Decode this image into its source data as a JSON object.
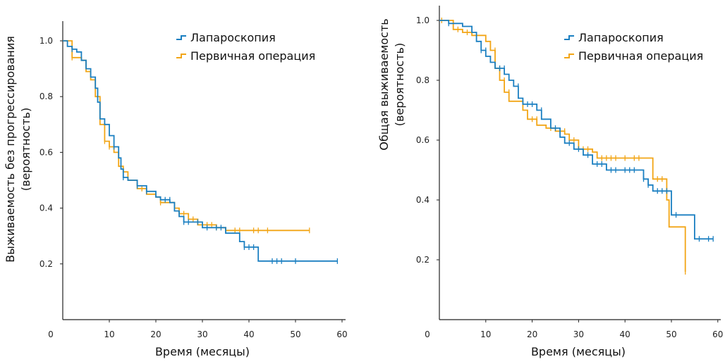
{
  "colors": {
    "laparoscopy": "#1a7fc1",
    "primary": "#f2a516"
  },
  "chart_data": [
    {
      "type": "line",
      "subtype": "kaplan-meier",
      "title": "",
      "xlabel": "Время (месяцы)",
      "ylabel_line1": "Выживаемость без прогрессирования",
      "ylabel_line2": "(вероятность)",
      "xlim": [
        0,
        60
      ],
      "ylim": [
        0,
        1.05
      ],
      "xticks": [
        0,
        10,
        20,
        30,
        40,
        50,
        60
      ],
      "xtick_labels": [
        "0",
        "10",
        "20",
        "30",
        "40",
        "50",
        "60"
      ],
      "yticks": [
        0.2,
        0.4,
        0.6,
        0.8,
        1.0
      ],
      "ytick_labels": [
        "0.2",
        "0.4",
        "0.6",
        "0.8",
        "1.0"
      ],
      "grid": false,
      "legend_position": "top-right",
      "series": [
        {
          "name": "Лапароскопия",
          "color_key": "laparoscopy",
          "steps": [
            [
              0,
              1.0
            ],
            [
              1,
              0.98
            ],
            [
              2,
              0.97
            ],
            [
              3,
              0.96
            ],
            [
              4,
              0.93
            ],
            [
              5,
              0.9
            ],
            [
              6,
              0.87
            ],
            [
              7,
              0.83
            ],
            [
              7.5,
              0.78
            ],
            [
              8,
              0.72
            ],
            [
              9,
              0.7
            ],
            [
              10,
              0.66
            ],
            [
              11,
              0.62
            ],
            [
              12,
              0.58
            ],
            [
              12.5,
              0.54
            ],
            [
              13,
              0.51
            ],
            [
              14,
              0.5
            ],
            [
              16,
              0.48
            ],
            [
              18,
              0.46
            ],
            [
              20,
              0.44
            ],
            [
              21,
              0.43
            ],
            [
              23,
              0.42
            ],
            [
              24,
              0.39
            ],
            [
              25,
              0.37
            ],
            [
              26,
              0.35
            ],
            [
              30,
              0.33
            ],
            [
              35,
              0.31
            ],
            [
              38,
              0.28
            ],
            [
              39,
              0.26
            ],
            [
              42,
              0.21
            ]
          ],
          "end": 59,
          "censored": [
            [
              2,
              0.97
            ],
            [
              11,
              0.62
            ],
            [
              13,
              0.51
            ],
            [
              16,
              0.48
            ],
            [
              18,
              0.46
            ],
            [
              22,
              0.43
            ],
            [
              23,
              0.43
            ],
            [
              26,
              0.35
            ],
            [
              27,
              0.35
            ],
            [
              29,
              0.35
            ],
            [
              31,
              0.33
            ],
            [
              33,
              0.33
            ],
            [
              34,
              0.33
            ],
            [
              39,
              0.26
            ],
            [
              40,
              0.26
            ],
            [
              41,
              0.26
            ],
            [
              45,
              0.21
            ],
            [
              46,
              0.21
            ],
            [
              47,
              0.21
            ],
            [
              50,
              0.21
            ],
            [
              59,
              0.21
            ]
          ]
        },
        {
          "name": "Первичная операция",
          "color_key": "primary",
          "steps": [
            [
              0,
              1.0
            ],
            [
              2,
              0.94
            ],
            [
              4,
              0.93
            ],
            [
              5,
              0.89
            ],
            [
              6,
              0.86
            ],
            [
              7,
              0.8
            ],
            [
              8,
              0.7
            ],
            [
              9,
              0.64
            ],
            [
              10,
              0.62
            ],
            [
              11,
              0.6
            ],
            [
              12,
              0.55
            ],
            [
              13,
              0.53
            ],
            [
              14,
              0.5
            ],
            [
              16,
              0.47
            ],
            [
              18,
              0.45
            ],
            [
              20,
              0.44
            ],
            [
              21,
              0.42
            ],
            [
              24,
              0.4
            ],
            [
              25,
              0.38
            ],
            [
              27,
              0.36
            ],
            [
              29,
              0.34
            ],
            [
              33,
              0.33
            ],
            [
              35,
              0.32
            ]
          ],
          "end": 53,
          "censored": [
            [
              2,
              0.94
            ],
            [
              9,
              0.64
            ],
            [
              10,
              0.62
            ],
            [
              13,
              0.53
            ],
            [
              17,
              0.47
            ],
            [
              21,
              0.42
            ],
            [
              26,
              0.38
            ],
            [
              28,
              0.36
            ],
            [
              31,
              0.34
            ],
            [
              32,
              0.34
            ],
            [
              33,
              0.33
            ],
            [
              35,
              0.32
            ],
            [
              37,
              0.32
            ],
            [
              38,
              0.32
            ],
            [
              41,
              0.32
            ],
            [
              42,
              0.32
            ],
            [
              44,
              0.32
            ],
            [
              53,
              0.32
            ]
          ]
        }
      ]
    },
    {
      "type": "line",
      "subtype": "kaplan-meier",
      "title": "",
      "xlabel": "Время (месяцы)",
      "ylabel_line1": "Общая выживаемость",
      "ylabel_line2": "(вероятность)",
      "xlim": [
        0,
        60
      ],
      "ylim": [
        0,
        1.05
      ],
      "xticks": [
        0,
        10,
        20,
        30,
        40,
        50,
        60
      ],
      "xtick_labels": [
        "0",
        "10",
        "20",
        "30",
        "40",
        "50",
        "60"
      ],
      "yticks": [
        0.2,
        0.4,
        0.6,
        0.8,
        1.0
      ],
      "ytick_labels": [
        "0.2",
        "0.4",
        "0.6",
        "0.8",
        "1.0"
      ],
      "grid": false,
      "legend_position": "top-right",
      "series": [
        {
          "name": "Лапароскопия",
          "color_key": "laparoscopy",
          "steps": [
            [
              0,
              1.0
            ],
            [
              2,
              0.99
            ],
            [
              5,
              0.98
            ],
            [
              7,
              0.96
            ],
            [
              8,
              0.93
            ],
            [
              9,
              0.9
            ],
            [
              10,
              0.88
            ],
            [
              11,
              0.86
            ],
            [
              12,
              0.84
            ],
            [
              14,
              0.82
            ],
            [
              15,
              0.8
            ],
            [
              16,
              0.78
            ],
            [
              17,
              0.74
            ],
            [
              18,
              0.72
            ],
            [
              21,
              0.7
            ],
            [
              22,
              0.67
            ],
            [
              24,
              0.64
            ],
            [
              26,
              0.61
            ],
            [
              27,
              0.59
            ],
            [
              29,
              0.57
            ],
            [
              31,
              0.55
            ],
            [
              33,
              0.52
            ],
            [
              36,
              0.5
            ],
            [
              44,
              0.47
            ],
            [
              45,
              0.45
            ],
            [
              46,
              0.43
            ],
            [
              50,
              0.35
            ],
            [
              55,
              0.27
            ]
          ],
          "end": 59,
          "censored": [
            [
              2,
              0.99
            ],
            [
              9,
              0.9
            ],
            [
              10,
              0.9
            ],
            [
              13,
              0.84
            ],
            [
              14,
              0.84
            ],
            [
              17,
              0.78
            ],
            [
              19,
              0.72
            ],
            [
              20,
              0.72
            ],
            [
              22,
              0.7
            ],
            [
              25,
              0.64
            ],
            [
              28,
              0.59
            ],
            [
              30,
              0.57
            ],
            [
              32,
              0.55
            ],
            [
              34,
              0.52
            ],
            [
              35,
              0.52
            ],
            [
              37,
              0.5
            ],
            [
              38,
              0.5
            ],
            [
              40,
              0.5
            ],
            [
              41,
              0.5
            ],
            [
              42,
              0.5
            ],
            [
              44,
              0.47
            ],
            [
              45,
              0.45
            ],
            [
              47,
              0.43
            ],
            [
              48,
              0.43
            ],
            [
              49,
              0.43
            ],
            [
              51,
              0.35
            ],
            [
              56,
              0.27
            ],
            [
              58,
              0.27
            ],
            [
              59,
              0.27
            ]
          ]
        },
        {
          "name": "Первичная операция",
          "color_key": "primary",
          "steps": [
            [
              0,
              1.0
            ],
            [
              3,
              0.97
            ],
            [
              5,
              0.96
            ],
            [
              7,
              0.95
            ],
            [
              10,
              0.93
            ],
            [
              11,
              0.9
            ],
            [
              12,
              0.84
            ],
            [
              13,
              0.8
            ],
            [
              14,
              0.76
            ],
            [
              15,
              0.73
            ],
            [
              18,
              0.7
            ],
            [
              19,
              0.67
            ],
            [
              21,
              0.65
            ],
            [
              23,
              0.64
            ],
            [
              25,
              0.63
            ],
            [
              27,
              0.62
            ],
            [
              28,
              0.6
            ],
            [
              30,
              0.57
            ],
            [
              33,
              0.56
            ],
            [
              34,
              0.54
            ],
            [
              46,
              0.47
            ],
            [
              49,
              0.4
            ],
            [
              49.5,
              0.31
            ],
            [
              53,
              0.16
            ]
          ],
          "end": 53,
          "censored": [
            [
              0.5,
              1.0
            ],
            [
              4,
              0.97
            ],
            [
              6,
              0.96
            ],
            [
              12,
              0.9
            ],
            [
              13,
              0.84
            ],
            [
              14,
              0.8
            ],
            [
              15,
              0.76
            ],
            [
              20,
              0.67
            ],
            [
              21,
              0.67
            ],
            [
              24,
              0.64
            ],
            [
              26,
              0.63
            ],
            [
              27,
              0.63
            ],
            [
              29,
              0.6
            ],
            [
              31,
              0.57
            ],
            [
              32,
              0.57
            ],
            [
              35,
              0.54
            ],
            [
              36,
              0.54
            ],
            [
              37,
              0.54
            ],
            [
              38,
              0.54
            ],
            [
              40,
              0.54
            ],
            [
              42,
              0.54
            ],
            [
              43,
              0.54
            ],
            [
              47,
              0.47
            ],
            [
              48,
              0.47
            ],
            [
              53,
              0.16
            ]
          ]
        }
      ]
    }
  ]
}
